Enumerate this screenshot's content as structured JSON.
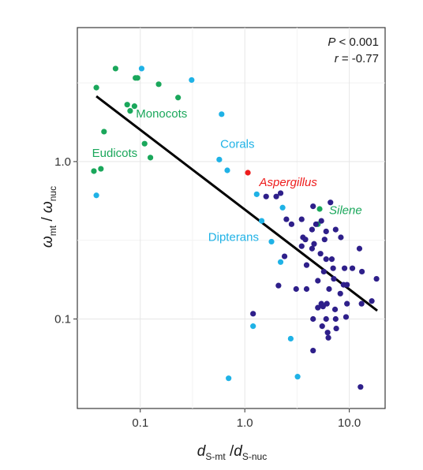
{
  "chart_data": {
    "type": "scatter",
    "x_scale": "log",
    "y_scale": "log",
    "xlim": [
      0.025,
      22
    ],
    "ylim": [
      0.027,
      7.1
    ],
    "x_ticks": [
      {
        "value": 0.1,
        "label": "0.1"
      },
      {
        "value": 1,
        "label": "1.0"
      },
      {
        "value": 10,
        "label": "10.0"
      }
    ],
    "y_ticks": [
      {
        "value": 0.1,
        "label": "0.1"
      },
      {
        "value": 1,
        "label": "1.0"
      }
    ],
    "minor_x_grid": [
      0.316,
      3.16
    ],
    "minor_y_grid": [
      0.316,
      3.16
    ],
    "xlabel": {
      "main1": "d",
      "sub1": "S-mt",
      "sep": " /",
      "main2": "d",
      "sub2": "S-nuc"
    },
    "ylabel": {
      "main1": "ω",
      "sub1": "mt",
      "sep": " / ",
      "main2": "ω",
      "sub2": "nuc"
    },
    "stats": {
      "p_var": "P",
      "p_text": " < 0.001",
      "r_var": "r",
      "r_text": " = -0.77"
    },
    "colors": {
      "plants": "#1aa75b",
      "cnidarians_insects": "#1fb2e6",
      "fungi": "#ee1c1c",
      "other_animals": "#2e1f8a",
      "fit": "#000000"
    },
    "group_labels": [
      {
        "text": "Monocots",
        "x": 0.16,
        "y": 2.0,
        "color": "plants",
        "italic": false
      },
      {
        "text": "Corals",
        "x": 0.85,
        "y": 1.28,
        "color": "cnidarians_insects",
        "italic": false
      },
      {
        "text": "Eudicots",
        "x": 0.057,
        "y": 1.12,
        "color": "plants",
        "italic": false
      },
      {
        "text": "Aspergillus",
        "x": 2.6,
        "y": 0.73,
        "color": "fungi",
        "italic": true
      },
      {
        "text": "Silene",
        "x": 9.2,
        "y": 0.485,
        "color": "plants",
        "italic": true
      },
      {
        "text": "Dipterans",
        "x": 0.78,
        "y": 0.328,
        "color": "cnidarians_insects",
        "italic": false
      }
    ],
    "fit_line": {
      "x": [
        0.038,
        18.5
      ],
      "y": [
        2.6,
        0.113
      ]
    },
    "series": [
      {
        "group": "plants",
        "points": [
          [
            0.058,
            3.9
          ],
          [
            0.038,
            2.95
          ],
          [
            0.09,
            3.4
          ],
          [
            0.094,
            3.4
          ],
          [
            0.15,
            3.1
          ],
          [
            0.23,
            2.55
          ],
          [
            0.075,
            2.3
          ],
          [
            0.088,
            2.25
          ],
          [
            0.08,
            2.1
          ],
          [
            0.045,
            1.55
          ],
          [
            0.11,
            1.3
          ],
          [
            0.125,
            1.06
          ],
          [
            0.042,
            0.9
          ],
          [
            0.036,
            0.87
          ],
          [
            5.2,
            0.5
          ],
          [
            5.0,
            0.4
          ]
        ]
      },
      {
        "group": "cnidarians_insects",
        "points": [
          [
            0.103,
            3.9
          ],
          [
            0.31,
            3.3
          ],
          [
            0.6,
            2.0
          ],
          [
            0.57,
            1.03
          ],
          [
            0.68,
            0.88
          ],
          [
            1.3,
            0.62
          ],
          [
            2.3,
            0.51
          ],
          [
            1.45,
            0.42
          ],
          [
            1.8,
            0.31
          ],
          [
            2.2,
            0.23
          ],
          [
            1.2,
            0.09
          ],
          [
            2.75,
            0.075
          ],
          [
            3.2,
            0.043
          ],
          [
            0.7,
            0.042
          ],
          [
            0.038,
            0.61
          ]
        ]
      },
      {
        "group": "fungi",
        "points": [
          [
            1.07,
            0.85
          ]
        ]
      },
      {
        "group": "other_animals",
        "points": [
          [
            1.6,
            0.6
          ],
          [
            2.0,
            0.6
          ],
          [
            2.2,
            0.63
          ],
          [
            4.5,
            0.52
          ],
          [
            6.6,
            0.55
          ],
          [
            4.8,
            0.4
          ],
          [
            2.5,
            0.43
          ],
          [
            2.8,
            0.4
          ],
          [
            3.5,
            0.43
          ],
          [
            5.4,
            0.42
          ],
          [
            4.4,
            0.37
          ],
          [
            7.4,
            0.37
          ],
          [
            3.6,
            0.33
          ],
          [
            3.8,
            0.32
          ],
          [
            4.6,
            0.3
          ],
          [
            5.8,
            0.32
          ],
          [
            6.0,
            0.36
          ],
          [
            8.3,
            0.33
          ],
          [
            3.5,
            0.29
          ],
          [
            4.4,
            0.28
          ],
          [
            5.3,
            0.26
          ],
          [
            6.0,
            0.24
          ],
          [
            6.8,
            0.24
          ],
          [
            12.5,
            0.28
          ],
          [
            2.4,
            0.25
          ],
          [
            3.9,
            0.22
          ],
          [
            5.7,
            0.2
          ],
          [
            7.0,
            0.21
          ],
          [
            9.0,
            0.21
          ],
          [
            10.7,
            0.21
          ],
          [
            13.2,
            0.2
          ],
          [
            5.0,
            0.175
          ],
          [
            7.1,
            0.18
          ],
          [
            8.8,
            0.165
          ],
          [
            9.5,
            0.165
          ],
          [
            18.2,
            0.18
          ],
          [
            2.1,
            0.163
          ],
          [
            3.1,
            0.155
          ],
          [
            3.9,
            0.155
          ],
          [
            6.4,
            0.155
          ],
          [
            8.2,
            0.145
          ],
          [
            5.4,
            0.125
          ],
          [
            6.1,
            0.125
          ],
          [
            9.5,
            0.125
          ],
          [
            13.1,
            0.125
          ],
          [
            16.4,
            0.13
          ],
          [
            5.0,
            0.118
          ],
          [
            5.6,
            0.12
          ],
          [
            7.3,
            0.115
          ],
          [
            1.2,
            0.108
          ],
          [
            4.5,
            0.1
          ],
          [
            6.0,
            0.1
          ],
          [
            7.4,
            0.1
          ],
          [
            9.3,
            0.103
          ],
          [
            5.5,
            0.09
          ],
          [
            6.2,
            0.082
          ],
          [
            7.5,
            0.087
          ],
          [
            4.5,
            0.063
          ],
          [
            12.8,
            0.037
          ],
          [
            6.3,
            0.076
          ]
        ]
      }
    ]
  }
}
